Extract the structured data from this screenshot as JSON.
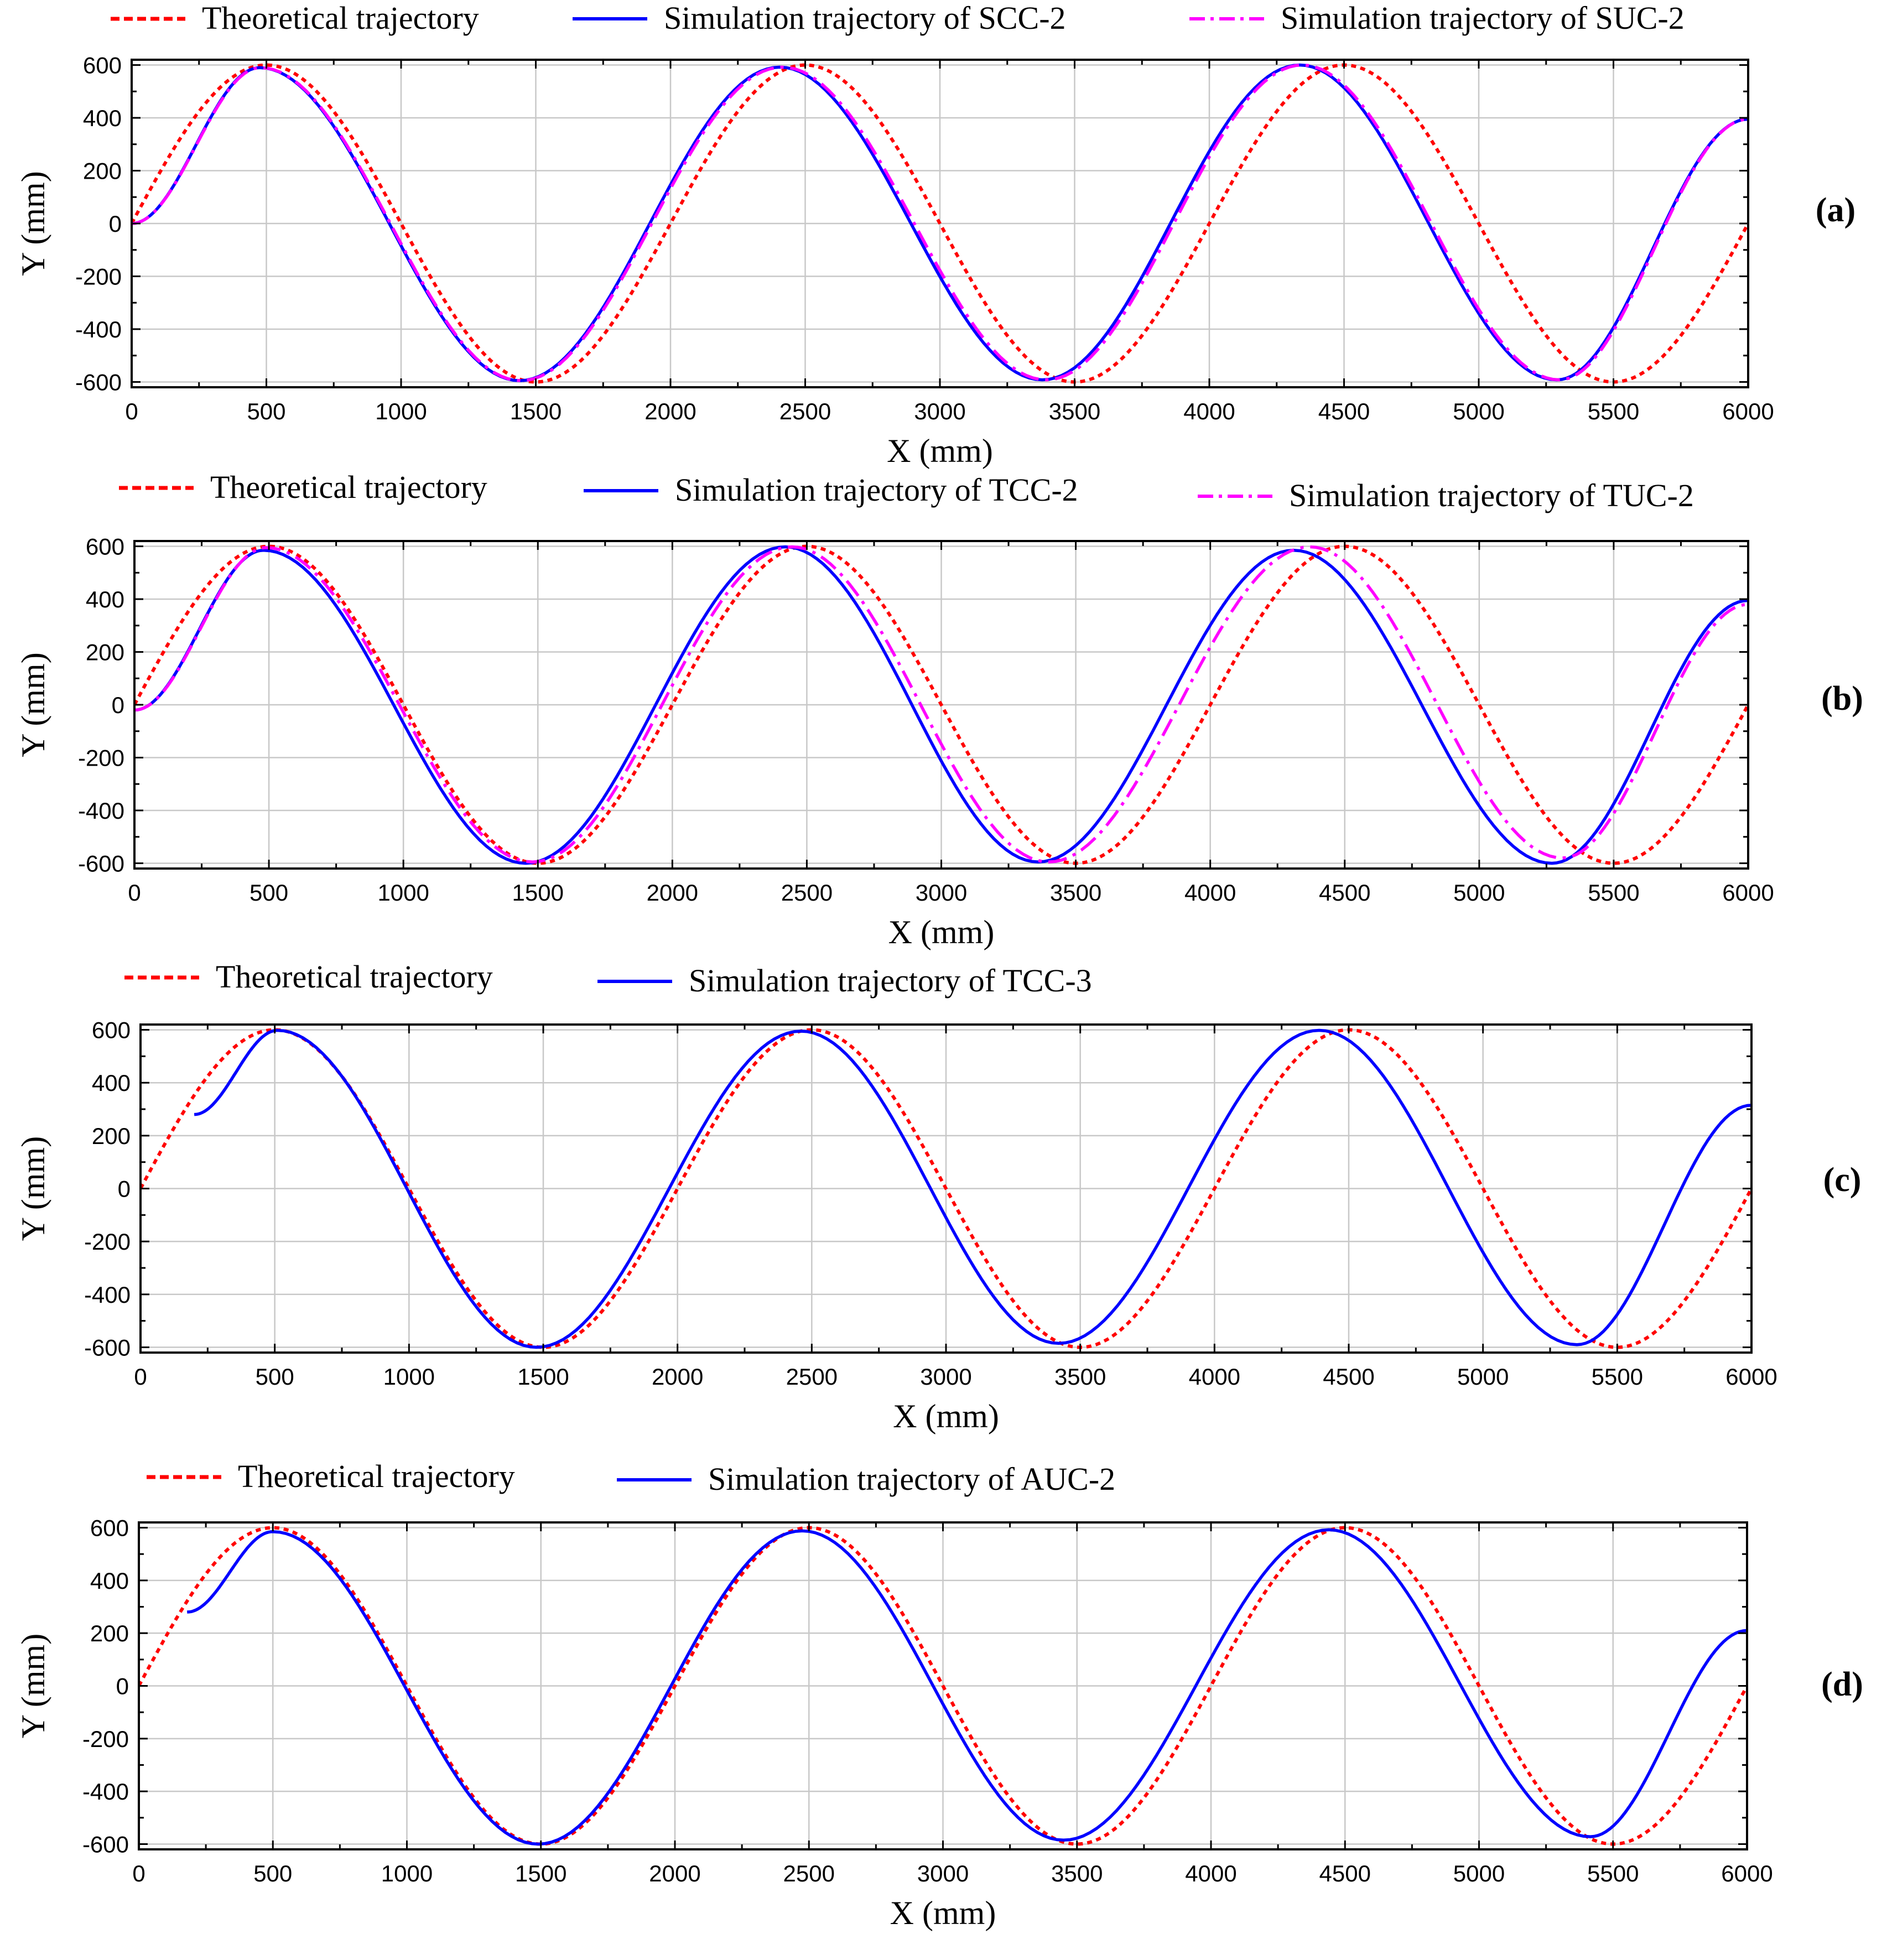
{
  "chart_data": [
    {
      "type": "line",
      "panel_label": "(a)",
      "xlabel": "X (mm)",
      "ylabel": "Y (mm)",
      "xlim": [
        0,
        6000
      ],
      "ylim": [
        -620,
        620
      ],
      "xticks": [
        0,
        500,
        1000,
        1500,
        2000,
        2500,
        3000,
        3500,
        4000,
        4500,
        5000,
        5500,
        6000
      ],
      "yticks": [
        -600,
        -400,
        -200,
        0,
        200,
        400,
        600
      ],
      "grid": true,
      "series": [
        {
          "name": "Theoretical trajectory",
          "color": "#ff0000",
          "style": "dotted",
          "amplitude": 600,
          "period": 2000,
          "x_start": 0,
          "x_end": 6000,
          "x": [
            0,
            500,
            1000,
            1500,
            2000,
            2500,
            3000,
            3500,
            4000,
            4500,
            5000,
            5500,
            6000
          ],
          "y": [
            0,
            600,
            0,
            -600,
            0,
            600,
            0,
            -600,
            0,
            600,
            0,
            -600,
            0
          ]
        },
        {
          "name": "Simulation trajectory of SCC-2",
          "color": "#0000ff",
          "style": "solid",
          "extrema": [
            [
              0,
              0
            ],
            [
              475,
              590
            ],
            [
              1440,
              -595
            ],
            [
              2405,
              592
            ],
            [
              3380,
              -592
            ],
            [
              4335,
              600
            ],
            [
              5290,
              -592
            ],
            [
              6000,
              395
            ]
          ]
        },
        {
          "name": "Simulation trajectory of SUC-2",
          "color": "#ff00ff",
          "style": "dashdot",
          "extrema": [
            [
              0,
              0
            ],
            [
              478,
              590
            ],
            [
              1445,
              -595
            ],
            [
              2415,
              592
            ],
            [
              3395,
              -592
            ],
            [
              4345,
              600
            ],
            [
              5300,
              -592
            ],
            [
              6000,
              395
            ]
          ]
        }
      ]
    },
    {
      "type": "line",
      "panel_label": "(b)",
      "xlabel": "X (mm)",
      "ylabel": "Y (mm)",
      "xlim": [
        0,
        6000
      ],
      "ylim": [
        -620,
        620
      ],
      "xticks": [
        0,
        500,
        1000,
        1500,
        2000,
        2500,
        3000,
        3500,
        4000,
        4500,
        5000,
        5500,
        6000
      ],
      "yticks": [
        -600,
        -400,
        -200,
        0,
        200,
        400,
        600
      ],
      "grid": true,
      "series": [
        {
          "name": "Theoretical trajectory",
          "color": "#ff0000",
          "style": "dotted",
          "amplitude": 600,
          "period": 2000,
          "x_start": 0,
          "x_end": 6000,
          "x": [
            0,
            500,
            1000,
            1500,
            2000,
            2500,
            3000,
            3500,
            4000,
            4500,
            5000,
            5500,
            6000
          ],
          "y": [
            0,
            600,
            0,
            -600,
            0,
            600,
            0,
            -600,
            0,
            600,
            0,
            -600,
            0
          ]
        },
        {
          "name": "Simulation trajectory of TCC-2",
          "color": "#0000ff",
          "style": "solid",
          "extrema": [
            [
              0,
              -20
            ],
            [
              480,
              585
            ],
            [
              1455,
              -600
            ],
            [
              2420,
              598
            ],
            [
              3360,
              -595
            ],
            [
              4310,
              585
            ],
            [
              5270,
              -600
            ],
            [
              6000,
              395
            ]
          ]
        },
        {
          "name": "Simulation trajectory of TUC-2",
          "color": "#ff00ff",
          "style": "dashdot",
          "extrema": [
            [
              0,
              -20
            ],
            [
              490,
              595
            ],
            [
              1480,
              -595
            ],
            [
              2445,
              598
            ],
            [
              3400,
              -595
            ],
            [
              4370,
              598
            ],
            [
              5310,
              -580
            ],
            [
              6000,
              380
            ]
          ]
        }
      ]
    },
    {
      "type": "line",
      "panel_label": "(c)",
      "xlabel": "X (mm)",
      "ylabel": "Y (mm)",
      "xlim": [
        0,
        6000
      ],
      "ylim": [
        -620,
        620
      ],
      "xticks": [
        0,
        500,
        1000,
        1500,
        2000,
        2500,
        3000,
        3500,
        4000,
        4500,
        5000,
        5500,
        6000
      ],
      "yticks": [
        -600,
        -400,
        -200,
        0,
        200,
        400,
        600
      ],
      "grid": true,
      "series": [
        {
          "name": "Theoretical trajectory",
          "color": "#ff0000",
          "style": "dotted",
          "amplitude": 600,
          "period": 2000,
          "x_start": 0,
          "x_end": 6000,
          "x": [
            0,
            500,
            1000,
            1500,
            2000,
            2500,
            3000,
            3500,
            4000,
            4500,
            5000,
            5500,
            6000
          ],
          "y": [
            0,
            600,
            0,
            -600,
            0,
            600,
            0,
            -600,
            0,
            600,
            0,
            -600,
            0
          ]
        },
        {
          "name": "Simulation trajectory of TCC-3",
          "color": "#0000ff",
          "style": "solid",
          "extrema": [
            [
              200,
              280
            ],
            [
              510,
              598
            ],
            [
              1475,
              -600
            ],
            [
              2460,
              595
            ],
            [
              3420,
              -585
            ],
            [
              4390,
              598
            ],
            [
              5350,
              -590
            ],
            [
              6000,
              315
            ]
          ]
        }
      ]
    },
    {
      "type": "line",
      "panel_label": "(d)",
      "xlabel": "X (mm)",
      "ylabel": "Y (mm)",
      "xlim": [
        0,
        6000
      ],
      "ylim": [
        -620,
        620
      ],
      "xticks": [
        0,
        500,
        1000,
        1500,
        2000,
        2500,
        3000,
        3500,
        4000,
        4500,
        5000,
        5500,
        6000
      ],
      "yticks": [
        -600,
        -400,
        -200,
        0,
        200,
        400,
        600
      ],
      "grid": true,
      "series": [
        {
          "name": "Theoretical trajectory",
          "color": "#ff0000",
          "style": "dotted",
          "amplitude": 600,
          "period": 2000,
          "x_start": 0,
          "x_end": 6000,
          "x": [
            0,
            500,
            1000,
            1500,
            2000,
            2500,
            3000,
            3500,
            4000,
            4500,
            5000,
            5500,
            6000
          ],
          "y": [
            0,
            600,
            0,
            -600,
            0,
            600,
            0,
            -600,
            0,
            600,
            0,
            -600,
            0
          ]
        },
        {
          "name": "Simulation trajectory of AUC-2",
          "color": "#0000ff",
          "style": "solid",
          "extrema": [
            [
              180,
              280
            ],
            [
              500,
              585
            ],
            [
              1490,
              -600
            ],
            [
              2475,
              588
            ],
            [
              3450,
              -585
            ],
            [
              4440,
              592
            ],
            [
              5415,
              -572
            ],
            [
              6000,
              210
            ]
          ]
        }
      ]
    }
  ]
}
